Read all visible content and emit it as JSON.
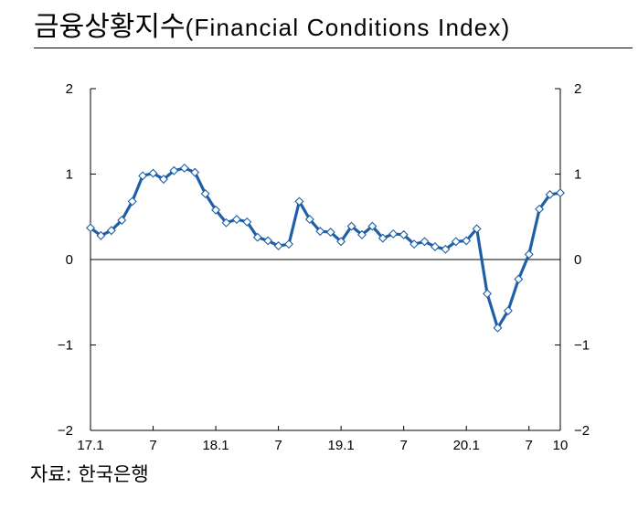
{
  "title": {
    "korean": "금융상황지수",
    "english": "(Financial Conditions Index)"
  },
  "source": "자료: 한국은행",
  "chart_data": {
    "type": "line",
    "title": "금융상황지수(Financial Conditions Index)",
    "xlabel": "",
    "ylabel": "",
    "ylim": [
      -2,
      2
    ],
    "y_ticks": [
      2,
      1,
      0,
      -1,
      -2
    ],
    "y_tick_labels": [
      "2",
      "1",
      "0",
      "−1",
      "−2"
    ],
    "x_tick_labels": [
      {
        "index": 0,
        "label": "17.1"
      },
      {
        "index": 6,
        "label": "7"
      },
      {
        "index": 12,
        "label": "18.1"
      },
      {
        "index": 18,
        "label": "7"
      },
      {
        "index": 24,
        "label": "19.1"
      },
      {
        "index": 30,
        "label": "7"
      },
      {
        "index": 36,
        "label": "20.1"
      },
      {
        "index": 42,
        "label": "7"
      },
      {
        "index": 45,
        "label": "10"
      }
    ],
    "x": [
      "17.1",
      "17.2",
      "17.3",
      "17.4",
      "17.5",
      "17.6",
      "17.7",
      "17.8",
      "17.9",
      "17.10",
      "17.11",
      "17.12",
      "18.1",
      "18.2",
      "18.3",
      "18.4",
      "18.5",
      "18.6",
      "18.7",
      "18.8",
      "18.9",
      "18.10",
      "18.11",
      "18.12",
      "19.1",
      "19.2",
      "19.3",
      "19.4",
      "19.5",
      "19.6",
      "19.7",
      "19.8",
      "19.9",
      "19.10",
      "19.11",
      "19.12",
      "20.1",
      "20.2",
      "20.3",
      "20.4",
      "20.5",
      "20.6",
      "20.7",
      "20.8",
      "20.9",
      "20.10"
    ],
    "grid": false,
    "zero_line": true,
    "series": [
      {
        "color": "#1f5fa8",
        "marker_color": "#ffffff",
        "values": [
          0.37,
          0.28,
          0.34,
          0.46,
          0.68,
          0.98,
          1.01,
          0.94,
          1.04,
          1.07,
          1.02,
          0.77,
          0.58,
          0.43,
          0.47,
          0.44,
          0.26,
          0.22,
          0.16,
          0.18,
          0.68,
          0.47,
          0.33,
          0.32,
          0.21,
          0.39,
          0.29,
          0.39,
          0.25,
          0.3,
          0.29,
          0.18,
          0.21,
          0.15,
          0.12,
          0.21,
          0.22,
          0.36,
          -0.4,
          -0.8,
          -0.6,
          -0.23,
          0.06,
          0.59,
          0.76,
          0.78
        ]
      }
    ]
  }
}
